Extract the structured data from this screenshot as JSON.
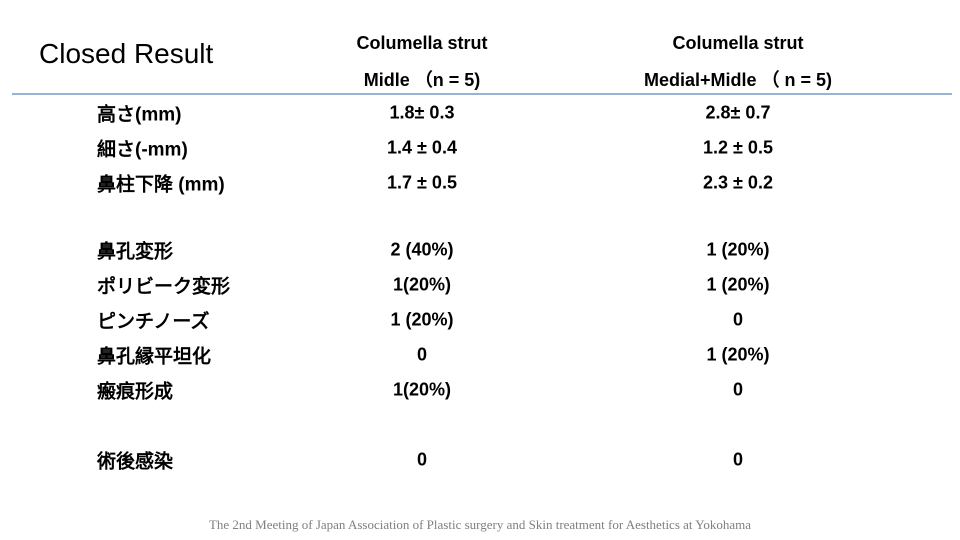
{
  "title": "Closed Result",
  "table": {
    "columns": [
      [
        "Columella strut",
        "Midle （n = 5)"
      ],
      [
        "Columella strut",
        "Medial+Midle （ n = 5)"
      ]
    ],
    "groups": [
      [
        [
          "高さ(mm)",
          "1.8± 0.3",
          "2.8± 0.7"
        ],
        [
          "細さ(-mm)",
          "1.4 ± 0.4",
          "1.2 ± 0.5"
        ],
        [
          "鼻柱下降 (mm)",
          "1.7 ± 0.5",
          "2.3 ± 0.2"
        ]
      ],
      [
        [
          "鼻孔変形",
          "2 (40%)",
          "1 (20%)"
        ],
        [
          "ポリビーク変形",
          "1(20%)",
          "1 (20%)"
        ],
        [
          "ピンチノーズ",
          "1 (20%)",
          "0"
        ],
        [
          "鼻孔縁平坦化",
          "0",
          "1 (20%)"
        ],
        [
          "瘢痕形成",
          "1(20%)",
          "0"
        ]
      ],
      [
        [
          "術後感染",
          "0",
          "0"
        ]
      ]
    ]
  },
  "footer": "The 2nd Meeting of Japan Association of Plastic surgery and Skin treatment for Aesthetics at Yokohama"
}
